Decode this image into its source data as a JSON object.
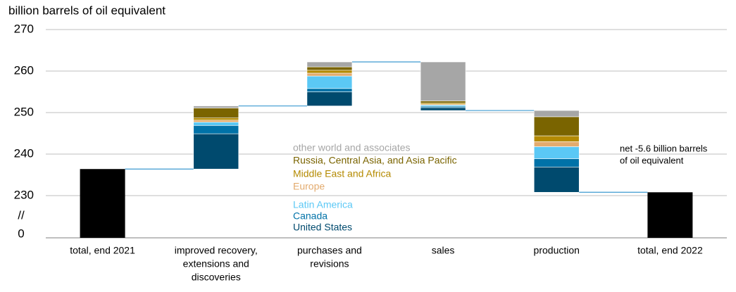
{
  "chart_data": {
    "type": "waterfall",
    "y_axis_label": "billion barrels of oil equivalent",
    "categories": [
      [
        "total, end 2021"
      ],
      [
        "improved recovery,",
        "extensions and",
        "discoveries"
      ],
      [
        "purchases and",
        "revisions"
      ],
      [
        "sales"
      ],
      [
        "production"
      ],
      [
        "total, end 2022"
      ]
    ],
    "totals": [
      236.4,
      null,
      null,
      null,
      null,
      230.8
    ],
    "total_color": "#000000",
    "connector_color": "#3d9ad1",
    "series": [
      {
        "name": "United States",
        "color": "#004a6e",
        "values": [
          null,
          8.5,
          3.4,
          -0.7,
          -6.1,
          null
        ]
      },
      {
        "name": "Canada",
        "color": "#0072a8",
        "values": [
          null,
          2.0,
          0.8,
          -0.3,
          -2.0,
          null
        ]
      },
      {
        "name": "Latin America",
        "color": "#5bc8f5",
        "values": [
          null,
          0.8,
          3.0,
          -0.3,
          -2.9,
          null
        ]
      },
      {
        "name": "Europe",
        "color": "#e3ab6e",
        "values": [
          null,
          0.5,
          0.7,
          -0.2,
          -1.2,
          null
        ]
      },
      {
        "name": "Middle East and Africa",
        "color": "#b48a00",
        "values": [
          null,
          0.5,
          0.7,
          -0.3,
          -1.4,
          null
        ]
      },
      {
        "name": "Russia, Central Asia, and Asia Pacific",
        "color": "#7a6400",
        "values": [
          null,
          2.4,
          0.8,
          -0.5,
          -4.6,
          null
        ]
      },
      {
        "name": "other world and associates",
        "color": "#a6a6a6",
        "values": [
          null,
          0.5,
          1.2,
          -9.4,
          -1.5,
          null
        ]
      }
    ],
    "ylim": [
      230,
      270
    ],
    "yticks": [
      230,
      240,
      250,
      260,
      270
    ],
    "y_base_tick": 0,
    "axis_break_label": "//",
    "grid": true,
    "annotation": [
      "net -5.6 billion barrels",
      "of oil equivalent"
    ]
  }
}
